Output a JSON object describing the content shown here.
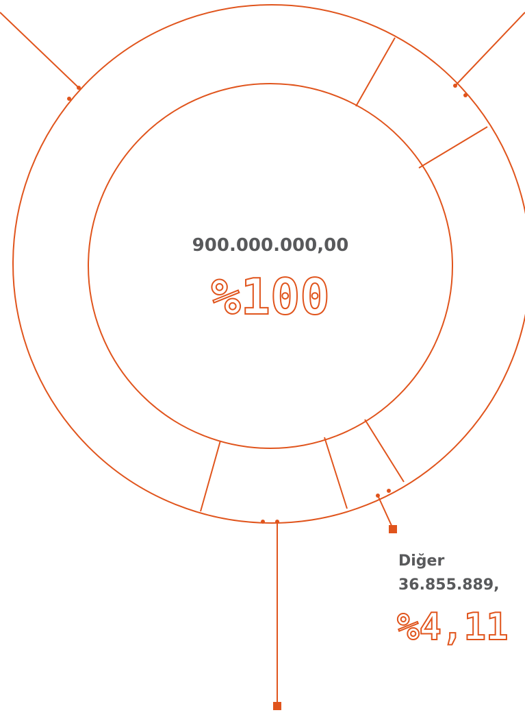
{
  "center": {
    "amount": "900.000.000,00",
    "percent": "%100"
  },
  "callout": {
    "name": "Diğer",
    "amount": "36.855.889,",
    "percent": "%4,11"
  }
}
